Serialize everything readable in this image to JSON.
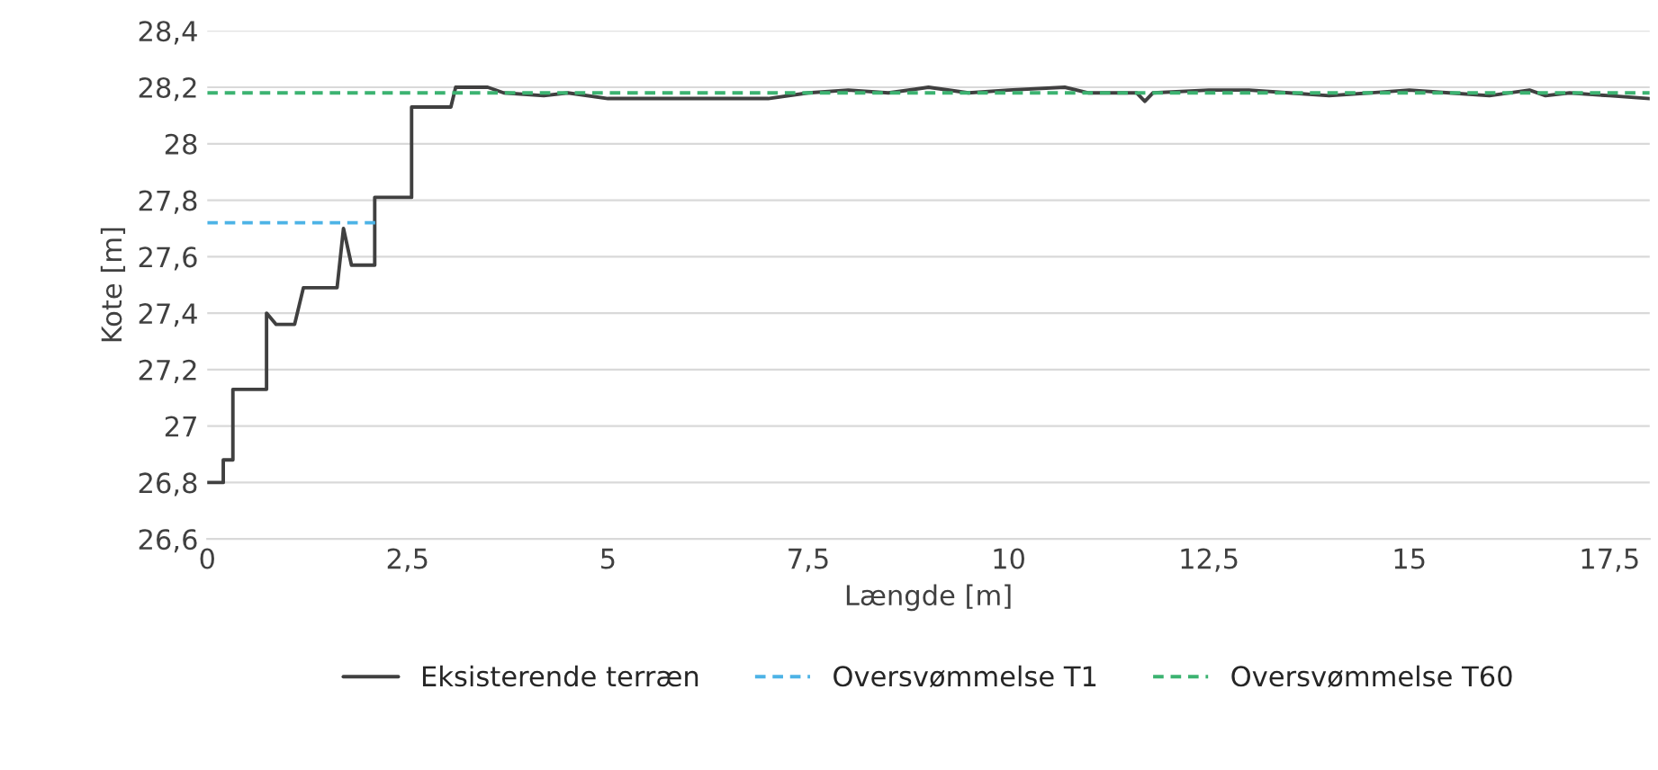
{
  "chart_data": {
    "type": "line",
    "xlabel": "Længde [m]",
    "ylabel": "Kote [m]",
    "xlim": [
      0,
      18
    ],
    "xticks": [
      {
        "value": 0,
        "label": "0"
      },
      {
        "value": 2.5,
        "label": "2,5"
      },
      {
        "value": 5,
        "label": "5"
      },
      {
        "value": 7.5,
        "label": "7,5"
      },
      {
        "value": 10,
        "label": "10"
      },
      {
        "value": 12.5,
        "label": "12,5"
      },
      {
        "value": 15,
        "label": "15"
      },
      {
        "value": 17.5,
        "label": "17,5"
      }
    ],
    "ylim": [
      26.6,
      28.4
    ],
    "yticks": [
      {
        "value": 26.6,
        "label": "26,6"
      },
      {
        "value": 26.8,
        "label": "26,8"
      },
      {
        "value": 27,
        "label": "27"
      },
      {
        "value": 27.2,
        "label": "27,2"
      },
      {
        "value": 27.4,
        "label": "27,4"
      },
      {
        "value": 27.6,
        "label": "27,6"
      },
      {
        "value": 27.8,
        "label": "27,8"
      },
      {
        "value": 28,
        "label": "28"
      },
      {
        "value": 28.2,
        "label": "28,2"
      },
      {
        "value": 28.4,
        "label": "28,4"
      }
    ],
    "grid": "y",
    "legend": "bottom",
    "series": [
      {
        "name": "Eksisterende terræn",
        "color": "#404040",
        "line_style": "solid",
        "x": [
          0,
          0.2,
          0.2,
          0.32,
          0.32,
          0.74,
          0.74,
          0.86,
          1.09,
          1.2,
          1.62,
          1.7,
          1.8,
          2.09,
          2.09,
          2.55,
          2.55,
          3.04,
          3.1,
          3.5,
          3.7,
          4.2,
          4.5,
          5,
          6,
          7,
          7.5,
          8,
          8.5,
          9,
          9.5,
          10,
          10.7,
          11,
          11.6,
          11.7,
          11.8,
          12.5,
          13,
          13.5,
          14,
          15,
          15.5,
          16,
          16.5,
          16.7,
          17,
          17.5,
          18
        ],
        "values": [
          26.8,
          26.8,
          26.88,
          26.88,
          27.13,
          27.13,
          27.4,
          27.36,
          27.36,
          27.49,
          27.49,
          27.7,
          27.57,
          27.57,
          27.81,
          27.81,
          28.13,
          28.13,
          28.2,
          28.2,
          28.18,
          28.17,
          28.18,
          28.16,
          28.16,
          28.16,
          28.18,
          28.19,
          28.18,
          28.2,
          28.18,
          28.19,
          28.2,
          28.18,
          28.18,
          28.15,
          28.18,
          28.19,
          28.19,
          28.18,
          28.17,
          28.19,
          28.18,
          28.17,
          28.19,
          28.17,
          28.18,
          28.17,
          28.16
        ]
      },
      {
        "name": "Oversvømmelse T1",
        "color": "#4db3e6",
        "line_style": "dashed",
        "x": [
          0,
          2.13
        ],
        "values": [
          27.72,
          27.72
        ]
      },
      {
        "name": "Oversvømmelse T60",
        "color": "#3cb371",
        "line_style": "dashed",
        "x": [
          0,
          18
        ],
        "values": [
          28.18,
          28.18
        ]
      }
    ]
  }
}
